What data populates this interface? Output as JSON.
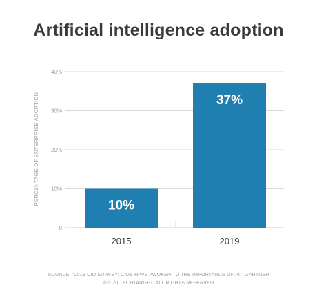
{
  "chart_data": {
    "type": "bar",
    "title": "Artificial intelligence adoption",
    "ylabel": "PERCENTAGE OF ENTERPRISE ADOPTION",
    "xlabel": "",
    "categories": [
      "2015",
      "2019"
    ],
    "values": [
      10,
      37
    ],
    "data_labels": [
      "10%",
      "37%"
    ],
    "ylim": [
      0,
      40
    ],
    "yticks": [
      0,
      10,
      20,
      30,
      40
    ],
    "ytick_labels": [
      "0",
      "10%",
      "20%",
      "30%",
      "40%"
    ],
    "grid": true,
    "bar_color": "#1e7fb0",
    "label_color": "#ffffff",
    "grid_color": "#d9d9d9"
  },
  "footer": {
    "source": "SOURCE: \"2019 CIO SURVEY: CIOS HAVE AWOKEN TO THE IMPORTANCE OF AI,\" GARTNER",
    "copyright": "©2020 TECHTARGET. ALL RIGHTS RESERVED"
  }
}
